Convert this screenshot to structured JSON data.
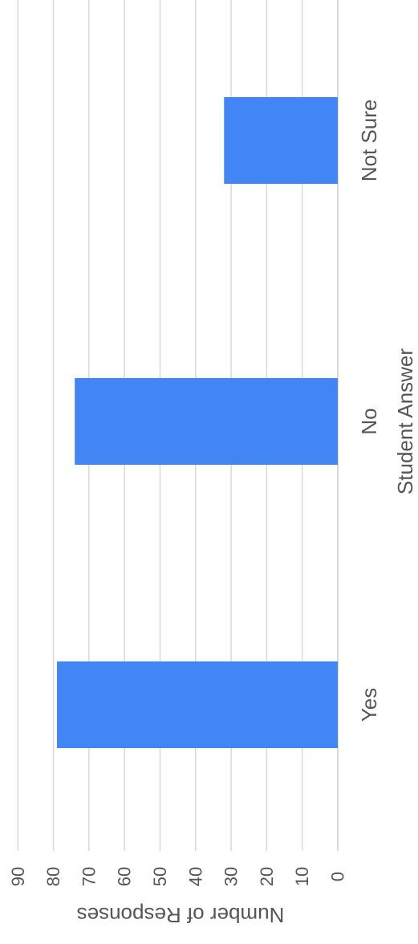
{
  "chart_data": {
    "type": "bar",
    "orientation": "vertical",
    "rotation": "90deg-counterclockwise",
    "categories": [
      "Yes",
      "No",
      "Not Sure"
    ],
    "values": [
      79,
      74,
      32
    ],
    "xlabel": "Student Answer",
    "ylabel": "Number of Responses",
    "ylim": [
      0,
      90
    ],
    "yticks": [
      0,
      10,
      20,
      30,
      40,
      50,
      60,
      70,
      80,
      90
    ],
    "grid": true,
    "legend": "none",
    "colors": {
      "bar": "#4285F4",
      "grid": "#d9d9d9",
      "text": "#555555"
    }
  }
}
